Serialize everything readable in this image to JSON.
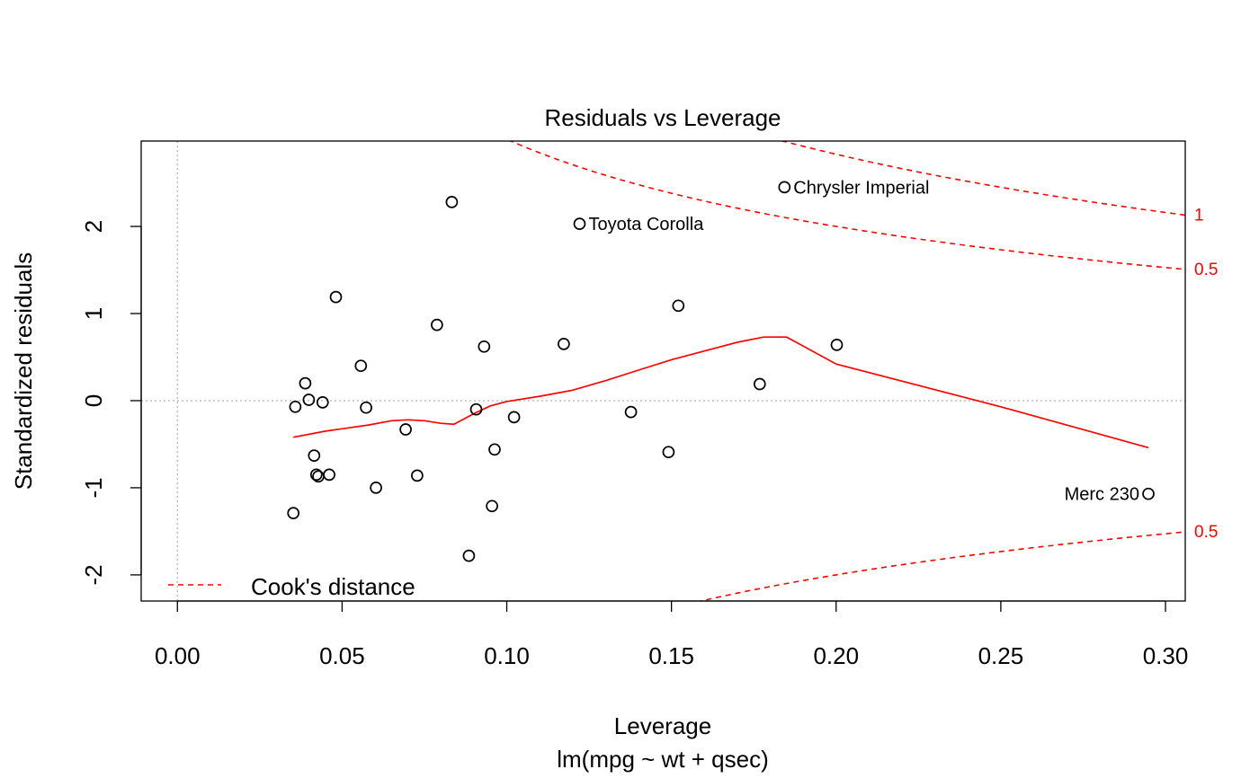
{
  "chart_data": {
    "type": "scatter",
    "title": "Residuals vs Leverage",
    "xlabel": "Leverage",
    "ylabel": "Standardized residuals",
    "subtitle": "lm(mpg ~ wt + qsec)",
    "xlim": [
      -0.011,
      0.306
    ],
    "ylim": [
      -2.3,
      2.98
    ],
    "x_ticks": [
      0.0,
      0.05,
      0.1,
      0.15,
      0.2,
      0.25,
      0.3
    ],
    "x_tick_labels": [
      "0.00",
      "0.05",
      "0.10",
      "0.15",
      "0.20",
      "0.25",
      "0.30"
    ],
    "y_ticks": [
      -2,
      -1,
      0,
      1,
      2
    ],
    "y_tick_labels": [
      "-2",
      "-1",
      "0",
      "1",
      "2"
    ],
    "points": [
      {
        "x": 0.0352,
        "y": -1.29
      },
      {
        "x": 0.0358,
        "y": -0.07
      },
      {
        "x": 0.0388,
        "y": 0.2
      },
      {
        "x": 0.0399,
        "y": 0.01
      },
      {
        "x": 0.0415,
        "y": -0.63
      },
      {
        "x": 0.0422,
        "y": -0.85
      },
      {
        "x": 0.0428,
        "y": -0.87
      },
      {
        "x": 0.0441,
        "y": -0.02
      },
      {
        "x": 0.0461,
        "y": -0.85
      },
      {
        "x": 0.0481,
        "y": 1.19
      },
      {
        "x": 0.0557,
        "y": 0.4
      },
      {
        "x": 0.0573,
        "y": -0.08
      },
      {
        "x": 0.0603,
        "y": -1.0
      },
      {
        "x": 0.0693,
        "y": -0.33
      },
      {
        "x": 0.0728,
        "y": -0.86
      },
      {
        "x": 0.0788,
        "y": 0.87
      },
      {
        "x": 0.0833,
        "y": 2.28
      },
      {
        "x": 0.0885,
        "y": -1.78
      },
      {
        "x": 0.0907,
        "y": -0.1
      },
      {
        "x": 0.0931,
        "y": 0.62
      },
      {
        "x": 0.0955,
        "y": -1.21
      },
      {
        "x": 0.0963,
        "y": -0.56
      },
      {
        "x": 0.1022,
        "y": -0.19
      },
      {
        "x": 0.1173,
        "y": 0.65
      },
      {
        "x": 0.1221,
        "y": 2.03
      },
      {
        "x": 0.1377,
        "y": -0.13
      },
      {
        "x": 0.1491,
        "y": -0.59
      },
      {
        "x": 0.1521,
        "y": 1.09
      },
      {
        "x": 0.1768,
        "y": 0.19
      },
      {
        "x": 0.1843,
        "y": 2.45
      },
      {
        "x": 0.2002,
        "y": 0.64
      },
      {
        "x": 0.2948,
        "y": -1.07
      }
    ],
    "labeled_points": [
      {
        "label": "Chrysler Imperial",
        "x": 0.1843,
        "y": 2.45,
        "side": "right"
      },
      {
        "label": "Toyota Corolla",
        "x": 0.1221,
        "y": 2.03,
        "side": "right"
      },
      {
        "label": "Merc 230",
        "x": 0.2948,
        "y": -1.07,
        "side": "left"
      }
    ],
    "smooth_line": {
      "x": [
        0.0352,
        0.045,
        0.058,
        0.065,
        0.07,
        0.075,
        0.08,
        0.084,
        0.09,
        0.095,
        0.1,
        0.11,
        0.12,
        0.13,
        0.14,
        0.15,
        0.16,
        0.17,
        0.178,
        0.185,
        0.2,
        0.25,
        0.2948
      ],
      "y": [
        -0.42,
        -0.35,
        -0.28,
        -0.23,
        -0.22,
        -0.23,
        -0.26,
        -0.27,
        -0.15,
        -0.06,
        -0.01,
        0.05,
        0.12,
        0.23,
        0.35,
        0.47,
        0.57,
        0.67,
        0.73,
        0.73,
        0.42,
        -0.07,
        -0.54
      ]
    },
    "cooks_distance": {
      "legend_label": "Cook's distance",
      "legend_position": "bottom-left",
      "p": 2,
      "contours": [
        {
          "level": 0.5,
          "label": "0.5",
          "sign": 1
        },
        {
          "level": 1,
          "label": "1",
          "sign": 1
        },
        {
          "level": 0.5,
          "label": "0.5",
          "sign": -1
        }
      ]
    },
    "reference_lines": {
      "h": 0,
      "v": 0
    },
    "colors": {
      "points": "#000000",
      "smooth": "#ff0000",
      "cooks": "#ff0000",
      "reference": "#bebebe"
    }
  }
}
